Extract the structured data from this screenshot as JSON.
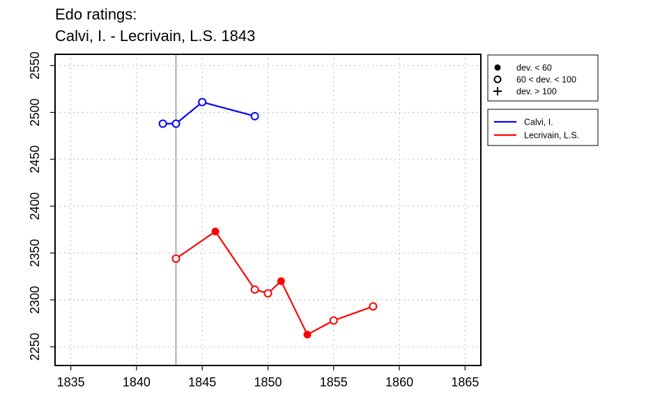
{
  "title_lines": [
    "Edo ratings:",
    "Calvi, I. - Lecrivain, L.S. 1843"
  ],
  "chart_data": {
    "type": "line",
    "title": "Edo ratings:\nCalvi, I. - Lecrivain, L.S. 1843",
    "xlabel": "",
    "ylabel": "",
    "xlim": [
      1833.8,
      1866.2
    ],
    "ylim": [
      2230,
      2562
    ],
    "x_ticks": [
      1835,
      1840,
      1845,
      1850,
      1855,
      1860,
      1865
    ],
    "y_ticks": [
      2250,
      2300,
      2350,
      2400,
      2450,
      2500,
      2550
    ],
    "grid": true,
    "vline_x": 1843,
    "series": [
      {
        "name": "Calvi, I.",
        "color": "#0000ff",
        "points": [
          {
            "x": 1842,
            "y": 2488,
            "marker": "open"
          },
          {
            "x": 1843,
            "y": 2488,
            "marker": "open"
          },
          {
            "x": 1845,
            "y": 2511,
            "marker": "open"
          },
          {
            "x": 1849,
            "y": 2496,
            "marker": "open"
          }
        ]
      },
      {
        "name": "Lecrivain, L.S.",
        "color": "#ff0000",
        "points": [
          {
            "x": 1843,
            "y": 2344,
            "marker": "open"
          },
          {
            "x": 1846,
            "y": 2373,
            "marker": "filled"
          },
          {
            "x": 1849,
            "y": 2311,
            "marker": "open"
          },
          {
            "x": 1850,
            "y": 2307,
            "marker": "open"
          },
          {
            "x": 1851,
            "y": 2320,
            "marker": "filled"
          },
          {
            "x": 1853,
            "y": 2263,
            "marker": "filled"
          },
          {
            "x": 1855,
            "y": 2278,
            "marker": "open"
          },
          {
            "x": 1858,
            "y": 2293,
            "marker": "open"
          }
        ]
      }
    ],
    "legend_markers": [
      {
        "symbol": "filled",
        "label": "dev. < 60"
      },
      {
        "symbol": "open",
        "label": "60 < dev. < 100"
      },
      {
        "symbol": "plus",
        "label": "dev. > 100"
      }
    ],
    "legend_placement": "right"
  }
}
